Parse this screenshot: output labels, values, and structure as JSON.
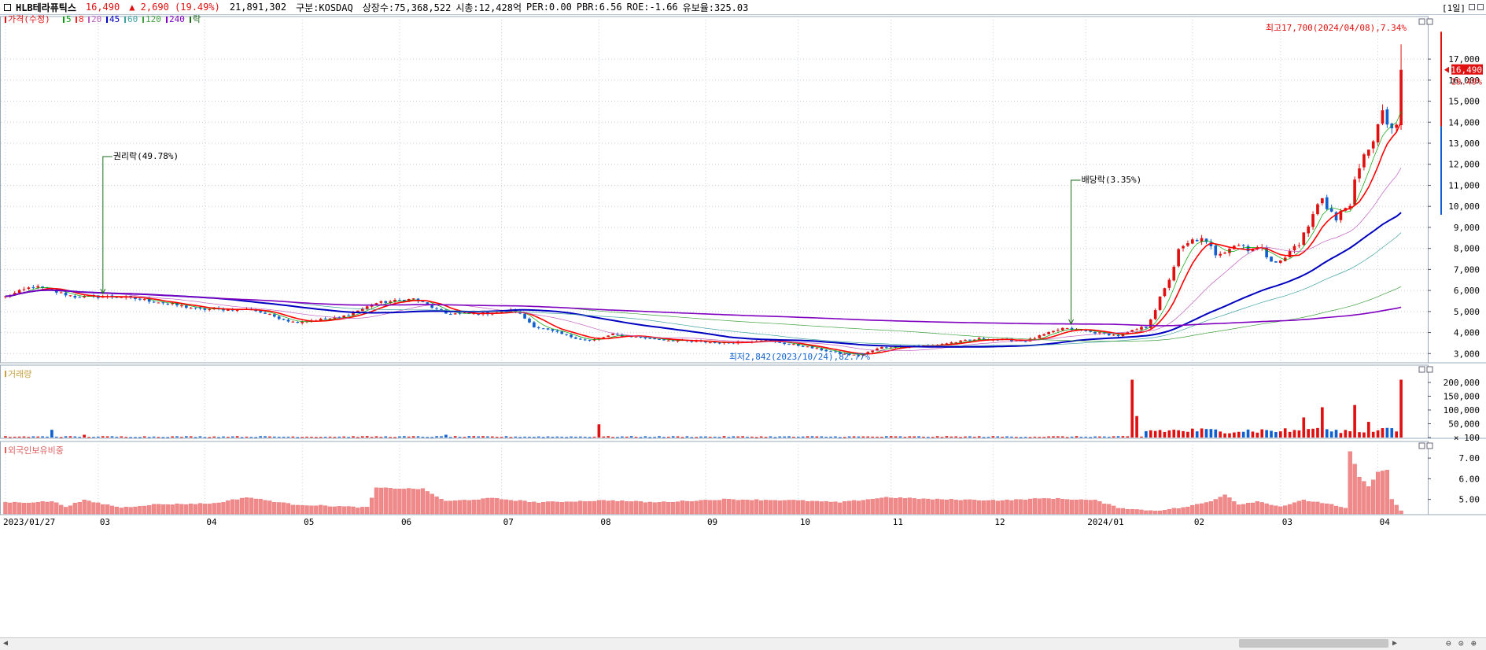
{
  "header": {
    "name": "HLB테라퓨틱스",
    "price": "16,490",
    "change": "▲ 2,690 (19.49%)",
    "volume": "21,891,302",
    "market": "구분:KOSDAQ",
    "shares": "상장수:75,368,522",
    "mcap": "시총:12,428억",
    "per": "PER:0.00",
    "pbr": "PBR:6.56",
    "roe": "ROE:-1.66",
    "reserve": "유보율:325.03",
    "period": "[1일]"
  },
  "legend": {
    "price_label": "가격(수정)",
    "ma": [
      {
        "label": "5",
        "color": "#00a000"
      },
      {
        "label": "8",
        "color": "#ff2020"
      },
      {
        "label": "20",
        "color": "#c060c0"
      },
      {
        "label": "45",
        "color": "#0000c0"
      },
      {
        "label": "60",
        "color": "#40a0a0"
      },
      {
        "label": "120",
        "color": "#40a040"
      },
      {
        "label": "240",
        "color": "#8000c0"
      }
    ],
    "rak": "락",
    "volume_label": "거래량",
    "foreign_label": "외국인보유비중"
  },
  "annotations": {
    "rights": "권리락(49.78%)",
    "dividend": "배당락(3.35%)",
    "high": "최고17,700(2024/04/08),7.34%",
    "low": "최저2,842(2023/10/24),82.77%",
    "last_price": "16,490",
    "last_pct": "19.49%"
  },
  "colors": {
    "up": "#e01010",
    "down": "#1060d0",
    "grid": "#c8d0dc"
  },
  "chart_data": [
    {
      "type": "candlestick",
      "title": "",
      "ylim": [
        2600,
        18500
      ],
      "yticks": [
        3000,
        4000,
        5000,
        6000,
        7000,
        8000,
        9000,
        10000,
        11000,
        12000,
        13000,
        14000,
        15000,
        16000,
        17000
      ],
      "ytick_labels": [
        "3,000",
        "4,000",
        "5,000",
        "6,000",
        "7,000",
        "8,000",
        "9,000",
        "10,000",
        "11,000",
        "12,000",
        "13,000",
        "14,000",
        "15,000",
        "16,000",
        "17,000"
      ],
      "xticks": [
        {
          "label": "2023/01/27",
          "index": 0
        },
        {
          "label": "03",
          "index": 20
        },
        {
          "label": "04",
          "index": 43
        },
        {
          "label": "05",
          "index": 64
        },
        {
          "label": "06",
          "index": 85
        },
        {
          "label": "07",
          "index": 107
        },
        {
          "label": "08",
          "index": 128
        },
        {
          "label": "09",
          "index": 151
        },
        {
          "label": "10",
          "index": 171
        },
        {
          "label": "11",
          "index": 191
        },
        {
          "label": "12",
          "index": 213
        },
        {
          "label": "2024/01",
          "index": 233
        },
        {
          "label": "02",
          "index": 256
        },
        {
          "label": "03",
          "index": 275
        },
        {
          "label": "04",
          "index": 296
        }
      ],
      "n_days": 302,
      "close_anchors": [
        [
          0,
          5700
        ],
        [
          6,
          6200
        ],
        [
          15,
          5700
        ],
        [
          25,
          5700
        ],
        [
          33,
          5450
        ],
        [
          42,
          5100
        ],
        [
          53,
          5100
        ],
        [
          62,
          4500
        ],
        [
          72,
          4700
        ],
        [
          80,
          5400
        ],
        [
          88,
          5600
        ],
        [
          95,
          4900
        ],
        [
          103,
          4900
        ],
        [
          110,
          5050
        ],
        [
          114,
          4300
        ],
        [
          122,
          3800
        ],
        [
          126,
          3600
        ],
        [
          131,
          3900
        ],
        [
          142,
          3650
        ],
        [
          155,
          3500
        ],
        [
          163,
          3650
        ],
        [
          172,
          3350
        ],
        [
          180,
          3000
        ],
        [
          184,
          2900
        ],
        [
          189,
          3300
        ],
        [
          200,
          3400
        ],
        [
          210,
          3700
        ],
        [
          220,
          3600
        ],
        [
          228,
          4200
        ],
        [
          235,
          4000
        ],
        [
          240,
          3850
        ],
        [
          246,
          4300
        ],
        [
          250,
          6000
        ],
        [
          253,
          7800
        ],
        [
          257,
          8500
        ],
        [
          261,
          7800
        ],
        [
          265,
          8200
        ],
        [
          270,
          8000
        ],
        [
          275,
          7300
        ],
        [
          280,
          8600
        ],
        [
          284,
          10500
        ],
        [
          287,
          9300
        ],
        [
          290,
          10300
        ],
        [
          294,
          12900
        ],
        [
          297,
          14200
        ],
        [
          300,
          13500
        ],
        [
          301,
          16490
        ]
      ],
      "ma": [
        {
          "name": "5",
          "period": 5,
          "color": "#00a000",
          "width": 0.7
        },
        {
          "name": "8",
          "period": 8,
          "color": "#ff0000",
          "width": 1.6
        },
        {
          "name": "20",
          "period": 20,
          "color": "#c060c0",
          "width": 0.7
        },
        {
          "name": "45",
          "period": 45,
          "color": "#0000c0",
          "width": 2
        },
        {
          "name": "60",
          "period": 60,
          "color": "#40a0a0",
          "width": 0.7
        },
        {
          "name": "120",
          "period": 120,
          "color": "#40a040",
          "width": 0.7
        },
        {
          "name": "240",
          "period": 240,
          "color": "#8000c0",
          "width": 1.6
        }
      ]
    },
    {
      "type": "bar",
      "title": "거래량",
      "ylim": [
        0,
        240000
      ],
      "yticks": [
        100,
        50000,
        100000,
        150000,
        200000
      ],
      "ytick_labels": [
        "100",
        "50,000",
        "100,000",
        "150,000",
        "200,000"
      ],
      "spikes": [
        [
          10,
          28000
        ],
        [
          17,
          10000
        ],
        [
          49,
          4000
        ],
        [
          95,
          10000
        ],
        [
          128,
          48000
        ],
        [
          191,
          5000
        ],
        [
          243,
          210000
        ],
        [
          244,
          78000
        ],
        [
          280,
          73000
        ],
        [
          282,
          32000
        ],
        [
          284,
          110000
        ],
        [
          291,
          118000
        ],
        [
          294,
          57000
        ],
        [
          298,
          35000
        ],
        [
          301,
          210000
        ]
      ]
    },
    {
      "type": "bar",
      "title": "외국인보유비중",
      "ylim": [
        4.3,
        7.5
      ],
      "yticks": [
        5,
        6,
        7
      ],
      "ytick_labels": [
        "5.00",
        "6.00",
        "7.00"
      ],
      "anchors": [
        [
          0,
          4.85
        ],
        [
          5,
          4.85
        ],
        [
          10,
          4.9
        ],
        [
          13,
          4.65
        ],
        [
          17,
          4.95
        ],
        [
          25,
          4.6
        ],
        [
          32,
          4.75
        ],
        [
          45,
          4.8
        ],
        [
          52,
          5.1
        ],
        [
          62,
          4.75
        ],
        [
          78,
          4.6
        ],
        [
          80,
          5.55
        ],
        [
          90,
          5.5
        ],
        [
          95,
          4.9
        ],
        [
          105,
          5.05
        ],
        [
          115,
          4.85
        ],
        [
          130,
          4.95
        ],
        [
          140,
          4.85
        ],
        [
          155,
          5.0
        ],
        [
          170,
          4.95
        ],
        [
          180,
          4.85
        ],
        [
          190,
          5.1
        ],
        [
          200,
          5.0
        ],
        [
          215,
          4.95
        ],
        [
          225,
          5.05
        ],
        [
          235,
          4.95
        ],
        [
          240,
          4.6
        ],
        [
          244,
          4.5
        ],
        [
          248,
          4.45
        ],
        [
          254,
          4.6
        ],
        [
          260,
          4.9
        ],
        [
          263,
          5.25
        ],
        [
          266,
          4.75
        ],
        [
          270,
          4.9
        ],
        [
          275,
          4.65
        ],
        [
          280,
          4.95
        ],
        [
          285,
          4.8
        ],
        [
          289,
          4.55
        ],
        [
          290,
          7.3
        ],
        [
          292,
          6.1
        ],
        [
          294,
          5.6
        ],
        [
          296,
          6.35
        ],
        [
          298,
          6.4
        ],
        [
          299,
          5.0
        ],
        [
          301,
          4.45
        ]
      ]
    }
  ]
}
